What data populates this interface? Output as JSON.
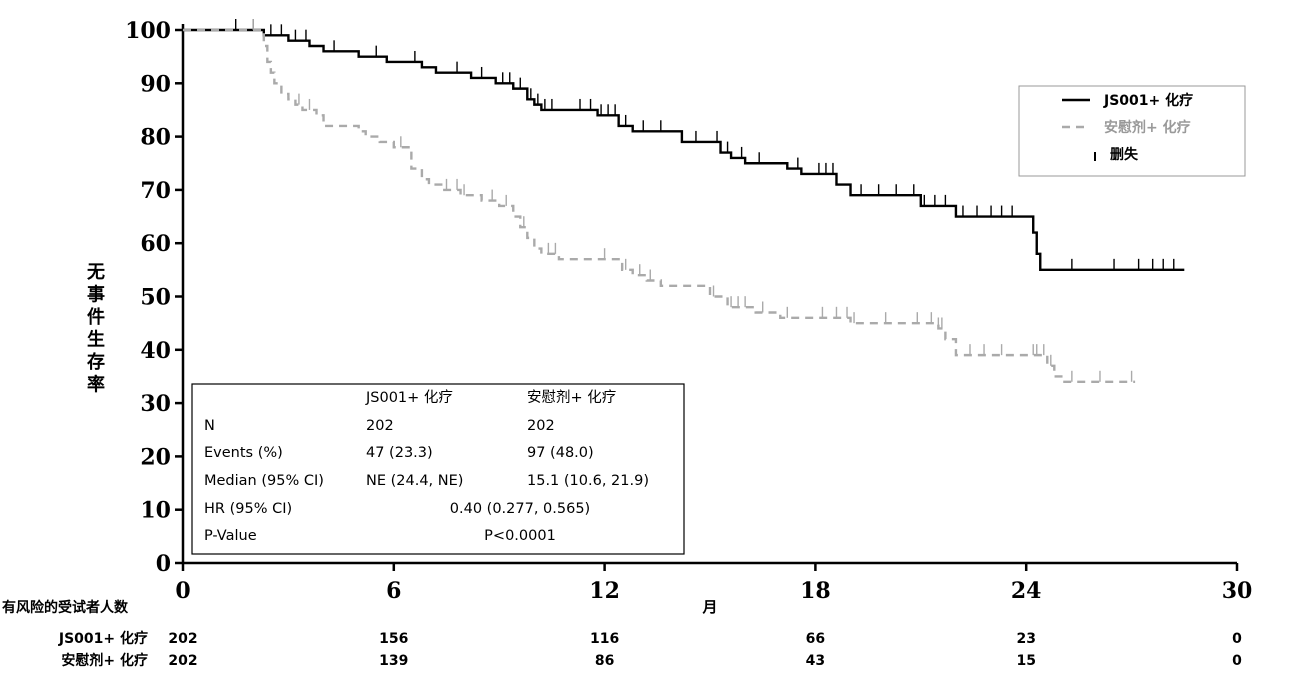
{
  "chart_data": {
    "type": "kaplan-meier",
    "ylabel": "无事件生存率",
    "xlabel": "月",
    "xlim": [
      0,
      30
    ],
    "ylim": [
      0,
      100
    ],
    "xticks": [
      "0",
      "6",
      "12",
      "18",
      "24",
      "30"
    ],
    "yticks": [
      "0",
      "10",
      "20",
      "30",
      "40",
      "50",
      "60",
      "70",
      "80",
      "90",
      "100"
    ],
    "legend": {
      "position": "top-right",
      "entries": [
        "JS001+ 化疗",
        "安慰剂+ 化疗",
        "删失"
      ]
    },
    "series": [
      {
        "name": "JS001+ 化疗",
        "color": "#000000",
        "style": "solid",
        "steps": [
          [
            0,
            100
          ],
          [
            2.2,
            100
          ],
          [
            2.3,
            99
          ],
          [
            3.0,
            98
          ],
          [
            3.6,
            97
          ],
          [
            4.0,
            96
          ],
          [
            5.0,
            95
          ],
          [
            5.8,
            94
          ],
          [
            6.8,
            93
          ],
          [
            7.2,
            92
          ],
          [
            8.2,
            91
          ],
          [
            8.9,
            90
          ],
          [
            9.4,
            89
          ],
          [
            9.8,
            87
          ],
          [
            10.0,
            86
          ],
          [
            10.2,
            85
          ],
          [
            11.8,
            84
          ],
          [
            12.4,
            82
          ],
          [
            12.8,
            81
          ],
          [
            14.2,
            79
          ],
          [
            15.3,
            77
          ],
          [
            15.6,
            76
          ],
          [
            16.0,
            75
          ],
          [
            17.2,
            74
          ],
          [
            17.6,
            73
          ],
          [
            18.6,
            71
          ],
          [
            19.0,
            69
          ],
          [
            21.0,
            67
          ],
          [
            22.0,
            65
          ],
          [
            24.2,
            62
          ],
          [
            24.3,
            58
          ],
          [
            24.4,
            55
          ],
          [
            28.5,
            55
          ]
        ],
        "censor_times": [
          1.5,
          2.0,
          2.5,
          2.8,
          3.2,
          3.5,
          4.3,
          5.5,
          6.6,
          7.8,
          8.5,
          9.1,
          9.3,
          9.6,
          9.9,
          10.1,
          10.3,
          10.5,
          11.3,
          11.6,
          11.9,
          12.1,
          12.3,
          12.6,
          13.1,
          13.6,
          14.6,
          15.2,
          15.5,
          15.9,
          16.4,
          17.5,
          18.1,
          18.3,
          18.5,
          19.3,
          19.8,
          20.3,
          20.8,
          21.1,
          21.4,
          21.7,
          22.2,
          22.6,
          23.0,
          23.3,
          23.6,
          25.3,
          26.5,
          27.2,
          27.6,
          27.9,
          28.2
        ]
      },
      {
        "name": "安慰剂+ 化疗",
        "color": "#aaaaaa",
        "style": "dashed",
        "steps": [
          [
            0,
            100
          ],
          [
            2.2,
            100
          ],
          [
            2.3,
            97
          ],
          [
            2.4,
            94
          ],
          [
            2.5,
            92
          ],
          [
            2.6,
            90
          ],
          [
            2.8,
            88
          ],
          [
            3.0,
            87
          ],
          [
            3.2,
            86
          ],
          [
            3.4,
            85
          ],
          [
            3.8,
            84
          ],
          [
            4.0,
            82
          ],
          [
            5.0,
            81
          ],
          [
            5.2,
            80
          ],
          [
            5.6,
            79
          ],
          [
            6.0,
            78
          ],
          [
            6.5,
            74
          ],
          [
            6.8,
            72
          ],
          [
            7.0,
            71
          ],
          [
            7.4,
            70
          ],
          [
            7.9,
            69
          ],
          [
            8.5,
            68
          ],
          [
            9.0,
            67
          ],
          [
            9.4,
            65
          ],
          [
            9.6,
            63
          ],
          [
            9.8,
            61
          ],
          [
            10.0,
            59
          ],
          [
            10.2,
            58
          ],
          [
            10.7,
            57
          ],
          [
            12.5,
            55
          ],
          [
            12.8,
            54
          ],
          [
            13.2,
            53
          ],
          [
            13.6,
            52
          ],
          [
            15.0,
            50
          ],
          [
            15.5,
            48
          ],
          [
            16.3,
            47
          ],
          [
            17.0,
            46
          ],
          [
            19.0,
            45
          ],
          [
            21.5,
            44
          ],
          [
            21.7,
            42
          ],
          [
            22.0,
            39
          ],
          [
            24.6,
            37
          ],
          [
            24.8,
            35
          ],
          [
            25.0,
            34
          ],
          [
            27.1,
            34
          ]
        ],
        "censor_times": [
          2.0,
          3.3,
          3.6,
          6.2,
          7.5,
          7.8,
          8.0,
          8.8,
          9.2,
          9.7,
          10.4,
          10.6,
          12.0,
          12.6,
          13.0,
          13.3,
          15.1,
          15.6,
          15.8,
          16.0,
          16.5,
          17.2,
          18.2,
          18.6,
          18.9,
          19.1,
          20.0,
          20.9,
          21.3,
          21.5,
          21.6,
          22.4,
          22.8,
          23.3,
          24.2,
          24.3,
          24.5,
          24.7,
          25.3,
          26.1,
          27.0
        ]
      }
    ],
    "stats_table": {
      "col_headers": [
        "JS001+ 化疗",
        "安慰剂+ 化疗"
      ],
      "rows": [
        {
          "label": "N",
          "a": "202",
          "b": "202"
        },
        {
          "label": "Events (%)",
          "a": "47 (23.3)",
          "b": "97 (48.0)"
        },
        {
          "label": "Median (95% CI)",
          "a": "NE (24.4, NE)",
          "b": "15.1 (10.6, 21.9)"
        }
      ],
      "hr_label": "HR (95% CI)",
      "hr_value": "0.40 (0.277, 0.565)",
      "p_label": "P-Value",
      "p_value": "P<0.0001"
    },
    "risk_table": {
      "title": "有风险的受试者人数",
      "rows": [
        {
          "label": "JS001+ 化疗",
          "counts": [
            "202",
            "156",
            "116",
            "66",
            "23",
            "0"
          ]
        },
        {
          "label": "安慰剂+ 化疗",
          "counts": [
            "202",
            "139",
            "86",
            "43",
            "15",
            "0"
          ]
        }
      ]
    }
  }
}
